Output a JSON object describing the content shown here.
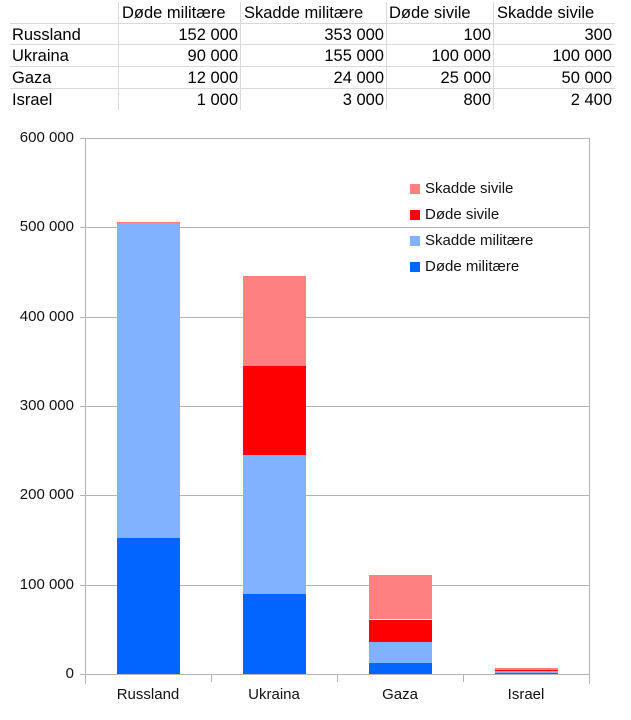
{
  "table": {
    "headers": [
      "",
      "Døde militære",
      "Skadde militære",
      "Døde sivile",
      "Skadde sivile"
    ],
    "rows": [
      {
        "label": "Russland",
        "cells": [
          "152 000",
          "353 000",
          "100",
          "300"
        ]
      },
      {
        "label": "Ukraina",
        "cells": [
          "90 000",
          "155 000",
          "100 000",
          "100 000"
        ]
      },
      {
        "label": "Gaza",
        "cells": [
          "12 000",
          "24 000",
          "25 000",
          "50 000"
        ]
      },
      {
        "label": "Israel",
        "cells": [
          "1 000",
          "3 000",
          "800",
          "2 400"
        ]
      }
    ]
  },
  "chart_data": {
    "type": "bar",
    "stacked": true,
    "title": "",
    "xlabel": "",
    "ylabel": "",
    "categories": [
      "Russland",
      "Ukraina",
      "Gaza",
      "Israel"
    ],
    "series": [
      {
        "name": "Døde militære",
        "color": "#0066ff",
        "values": [
          152000,
          90000,
          12000,
          1000
        ]
      },
      {
        "name": "Skadde militære",
        "color": "#80b2ff",
        "values": [
          353000,
          155000,
          24000,
          3000
        ]
      },
      {
        "name": "Døde sivile",
        "color": "#ff0000",
        "values": [
          100,
          100000,
          25000,
          800
        ]
      },
      {
        "name": "Skadde sivile",
        "color": "#ff8080",
        "values": [
          300,
          100000,
          50000,
          2400
        ]
      }
    ],
    "ylim": [
      0,
      600000
    ],
    "yticks": [
      "0",
      "100 000",
      "200 000",
      "300 000",
      "400 000",
      "500 000",
      "600 000"
    ],
    "grid": true,
    "legend": {
      "position": "right-inside",
      "order": [
        "Skadde sivile",
        "Døde sivile",
        "Skadde militære",
        "Døde militære"
      ]
    }
  }
}
